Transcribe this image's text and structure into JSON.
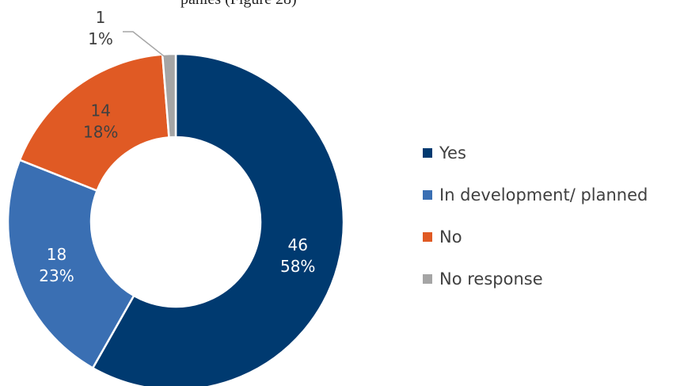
{
  "header_fragment": "panies (Figure 28)",
  "chart_data": {
    "type": "pie",
    "variant": "donut",
    "categories": [
      "Yes",
      "In development/ planned",
      "No",
      "No response"
    ],
    "values": [
      46,
      18,
      14,
      1
    ],
    "percent_labels": [
      "58%",
      "23%",
      "18%",
      "1%"
    ],
    "value_labels": [
      "46",
      "18",
      "14",
      "1"
    ],
    "colors": [
      "#003A70",
      "#3A6FB3",
      "#E05A24",
      "#A5A5A5"
    ],
    "label_colors": [
      "#ffffff",
      "#ffffff",
      "#404040",
      "#404040"
    ],
    "legend_position": "right"
  }
}
